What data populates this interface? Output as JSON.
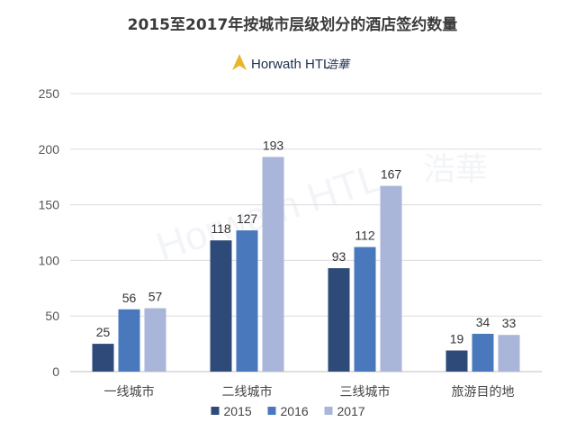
{
  "chart_data": {
    "type": "bar",
    "title": "2015至2017年按城市层级划分的酒店签约数量",
    "xlabel": "",
    "ylabel": "",
    "categories": [
      "一线城市",
      "二线城市",
      "三线城市",
      "旅游目的地"
    ],
    "series": [
      {
        "name": "2015",
        "values": [
          25,
          118,
          93,
          19
        ],
        "color": "#2e4a78"
      },
      {
        "name": "2016",
        "values": [
          56,
          127,
          112,
          34
        ],
        "color": "#4a78bd"
      },
      {
        "name": "2017",
        "values": [
          57,
          193,
          167,
          33
        ],
        "color": "#a9b6d9"
      }
    ],
    "ylim": [
      0,
      250
    ],
    "yticks": [
      0,
      50,
      100,
      150,
      200,
      250
    ],
    "grid": true,
    "legend": "bottom-center"
  },
  "brand": {
    "name": "Horwath HTL",
    "name_cn": "浩華",
    "logo_color": "#e8b62c",
    "watermark_text": "Horwath HTL",
    "watermark_cn": "浩華"
  }
}
